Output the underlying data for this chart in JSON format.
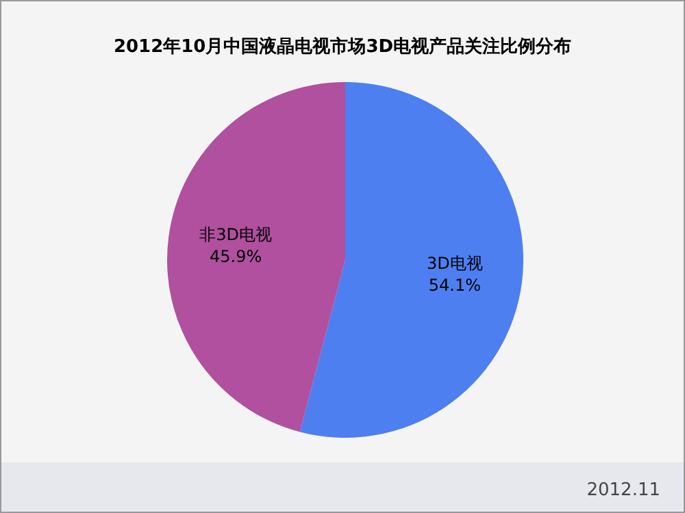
{
  "chart_data": {
    "type": "pie",
    "title": "2012年10月中国液晶电视市场3D电视产品关注比例分布",
    "categories": [
      "3D电视",
      "非3D电视"
    ],
    "values": [
      54.1,
      45.9
    ],
    "colors": [
      "#4d7ff0",
      "#b0509e"
    ],
    "value_labels": [
      "54.1%",
      "45.9%"
    ],
    "annotations": [
      "2012.11"
    ]
  }
}
